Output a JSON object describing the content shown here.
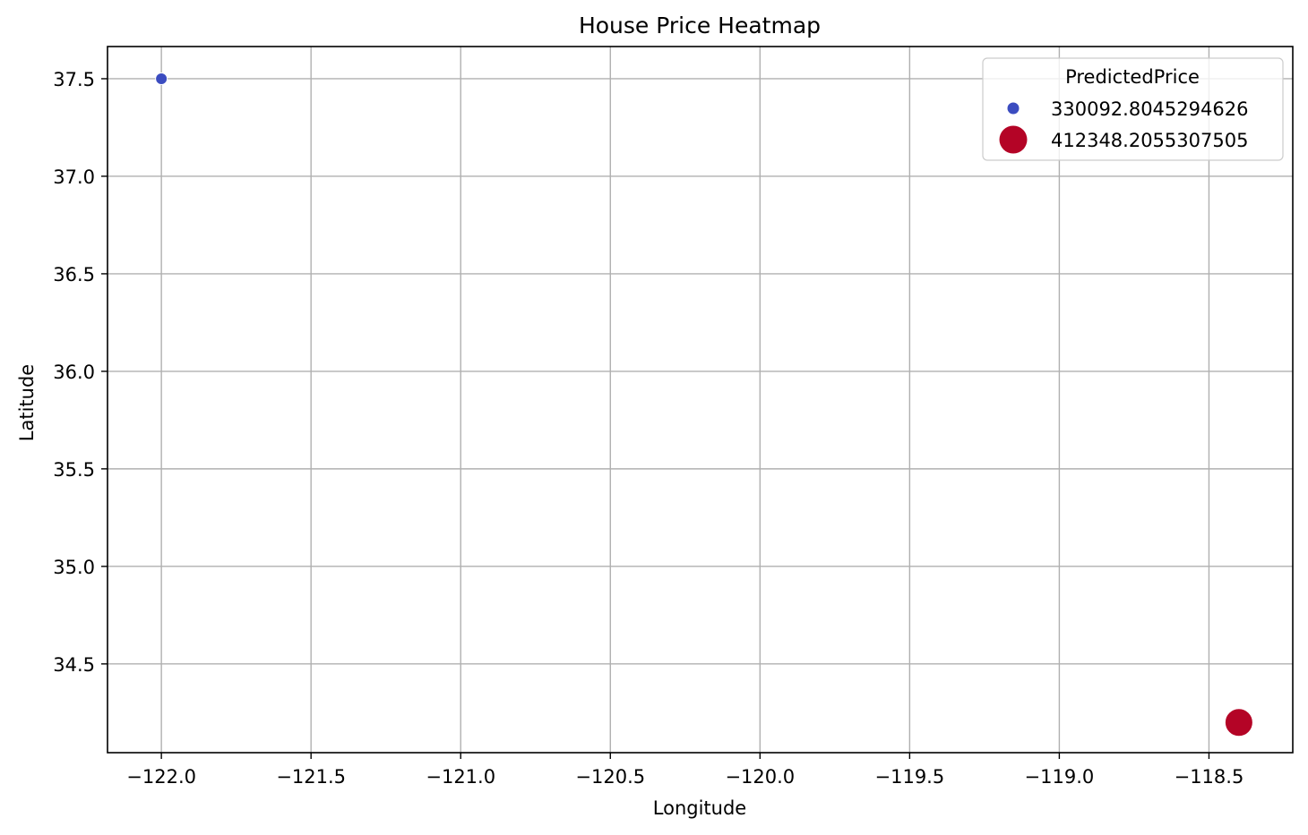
{
  "chart_data": {
    "type": "scatter",
    "title": "House Price Heatmap",
    "xlabel": "Longitude",
    "ylabel": "Latitude",
    "xlim": [
      -122.18,
      -118.22
    ],
    "ylim": [
      34.045,
      37.665
    ],
    "xticks": [
      -122.0,
      -121.5,
      -121.0,
      -120.5,
      -120.0,
      -119.5,
      -119.0,
      -118.5
    ],
    "xtick_labels": [
      "−122.0",
      "−121.5",
      "−121.0",
      "−120.5",
      "−120.0",
      "−119.5",
      "−119.0",
      "−118.5"
    ],
    "yticks": [
      34.5,
      35.0,
      35.5,
      36.0,
      36.5,
      37.0,
      37.5
    ],
    "ytick_labels": [
      "34.5",
      "35.0",
      "35.5",
      "36.0",
      "36.5",
      "37.0",
      "37.5"
    ],
    "grid": true,
    "legend": {
      "title": "PredictedPrice",
      "placement": "top-right",
      "entries": [
        "330092.8045294626",
        "412348.2055307505"
      ]
    },
    "points": [
      {
        "x": -122.0,
        "y": 37.5,
        "value": 330092.8045294626,
        "color": "#3b4cc0",
        "size": "small"
      },
      {
        "x": -118.4,
        "y": 34.2,
        "value": 412348.2055307505,
        "color": "#b40426",
        "size": "large"
      }
    ]
  }
}
